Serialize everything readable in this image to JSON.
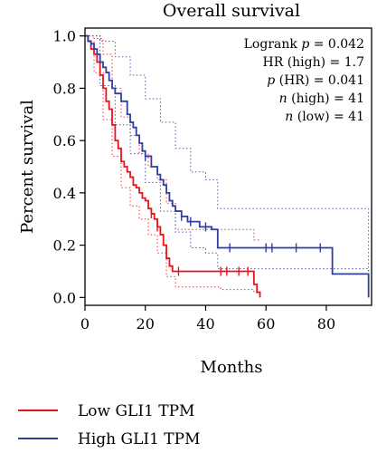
{
  "chart_data": {
    "type": "line",
    "subtype": "kaplan-meier",
    "title": "Overall survival",
    "xlabel": "Months",
    "ylabel": "Percent survival",
    "xlim": [
      0,
      95
    ],
    "ylim": [
      -0.03,
      1.03
    ],
    "xticks": [
      0,
      20,
      40,
      60,
      80
    ],
    "yticks": [
      0.0,
      0.2,
      0.4,
      0.6,
      0.8,
      1.0
    ],
    "xtick_labels": [
      "0",
      "20",
      "40",
      "60",
      "80"
    ],
    "ytick_labels": [
      "0.0",
      "0.2",
      "0.4",
      "0.6",
      "0.8",
      "1.0"
    ],
    "grid": false,
    "legend_position": "bottom-left",
    "stats": {
      "logrank_label": "Logrank",
      "logrank_p_sym": "p",
      "logrank_p": "= 0.042",
      "hr_label": "HR (high) = 1.7",
      "p_hr_sym": "p",
      "p_hr": "(HR) = 0.041",
      "n_high_sym": "n",
      "n_high": "(high) = 41",
      "n_low_sym": "n",
      "n_low": "(low) = 41"
    },
    "series": [
      {
        "name": "Low GLI1 TPM",
        "color": "#e8141c",
        "x": [
          0,
          1,
          2,
          3,
          4,
          5,
          6,
          7,
          8,
          9,
          10,
          11,
          12,
          13,
          14,
          15,
          16,
          17,
          18,
          19,
          20,
          21,
          22,
          23,
          24,
          25,
          26,
          27,
          28,
          29,
          30,
          56,
          57,
          58
        ],
        "y": [
          1.0,
          0.98,
          0.95,
          0.93,
          0.9,
          0.85,
          0.8,
          0.75,
          0.72,
          0.66,
          0.6,
          0.57,
          0.52,
          0.5,
          0.48,
          0.46,
          0.43,
          0.42,
          0.4,
          0.38,
          0.37,
          0.34,
          0.32,
          0.3,
          0.27,
          0.24,
          0.2,
          0.15,
          0.12,
          0.1,
          0.1,
          0.05,
          0.02,
          0.0
        ],
        "censor_x": [
          22,
          24,
          31,
          45,
          47,
          51,
          54
        ],
        "ci_upper_x": [
          0,
          3,
          6,
          9,
          12,
          15,
          18,
          21,
          24,
          27,
          30,
          45,
          56,
          58
        ],
        "ci_upper_y": [
          1.0,
          0.99,
          0.93,
          0.8,
          0.69,
          0.62,
          0.55,
          0.5,
          0.45,
          0.36,
          0.26,
          0.26,
          0.22,
          0.22
        ],
        "ci_lower_x": [
          0,
          3,
          6,
          9,
          12,
          15,
          18,
          21,
          24,
          27,
          30,
          45,
          56,
          58
        ],
        "ci_lower_y": [
          1.0,
          0.86,
          0.68,
          0.54,
          0.42,
          0.35,
          0.3,
          0.24,
          0.17,
          0.08,
          0.04,
          0.03,
          0.02,
          0.02
        ]
      },
      {
        "name": "High GLI1 TPM",
        "color": "#2e3f9e",
        "x": [
          0,
          1,
          2,
          3,
          4,
          5,
          6,
          7,
          8,
          9,
          10,
          12,
          14,
          15,
          16,
          17,
          18,
          19,
          20,
          22,
          24,
          25,
          26,
          27,
          28,
          29,
          30,
          32,
          34,
          36,
          38,
          40,
          42,
          44,
          82,
          94
        ],
        "y": [
          1.0,
          0.98,
          0.97,
          0.95,
          0.93,
          0.9,
          0.88,
          0.86,
          0.83,
          0.8,
          0.78,
          0.75,
          0.7,
          0.67,
          0.65,
          0.62,
          0.59,
          0.56,
          0.54,
          0.5,
          0.47,
          0.45,
          0.43,
          0.4,
          0.37,
          0.35,
          0.33,
          0.31,
          0.29,
          0.29,
          0.27,
          0.27,
          0.26,
          0.19,
          0.09,
          0.0
        ],
        "censor_x": [
          20,
          32,
          35,
          40,
          48,
          60,
          62,
          70,
          78
        ],
        "ci_upper_x": [
          0,
          5,
          10,
          15,
          20,
          25,
          30,
          35,
          40,
          44,
          82,
          94
        ],
        "ci_upper_y": [
          1.0,
          0.98,
          0.92,
          0.85,
          0.76,
          0.67,
          0.57,
          0.48,
          0.45,
          0.34,
          0.34,
          0.09
        ],
        "ci_lower_x": [
          0,
          5,
          10,
          15,
          20,
          25,
          30,
          35,
          40,
          44,
          82,
          94
        ],
        "ci_lower_y": [
          1.0,
          0.81,
          0.66,
          0.55,
          0.44,
          0.33,
          0.25,
          0.19,
          0.17,
          0.11,
          0.11,
          0.0
        ]
      }
    ]
  }
}
